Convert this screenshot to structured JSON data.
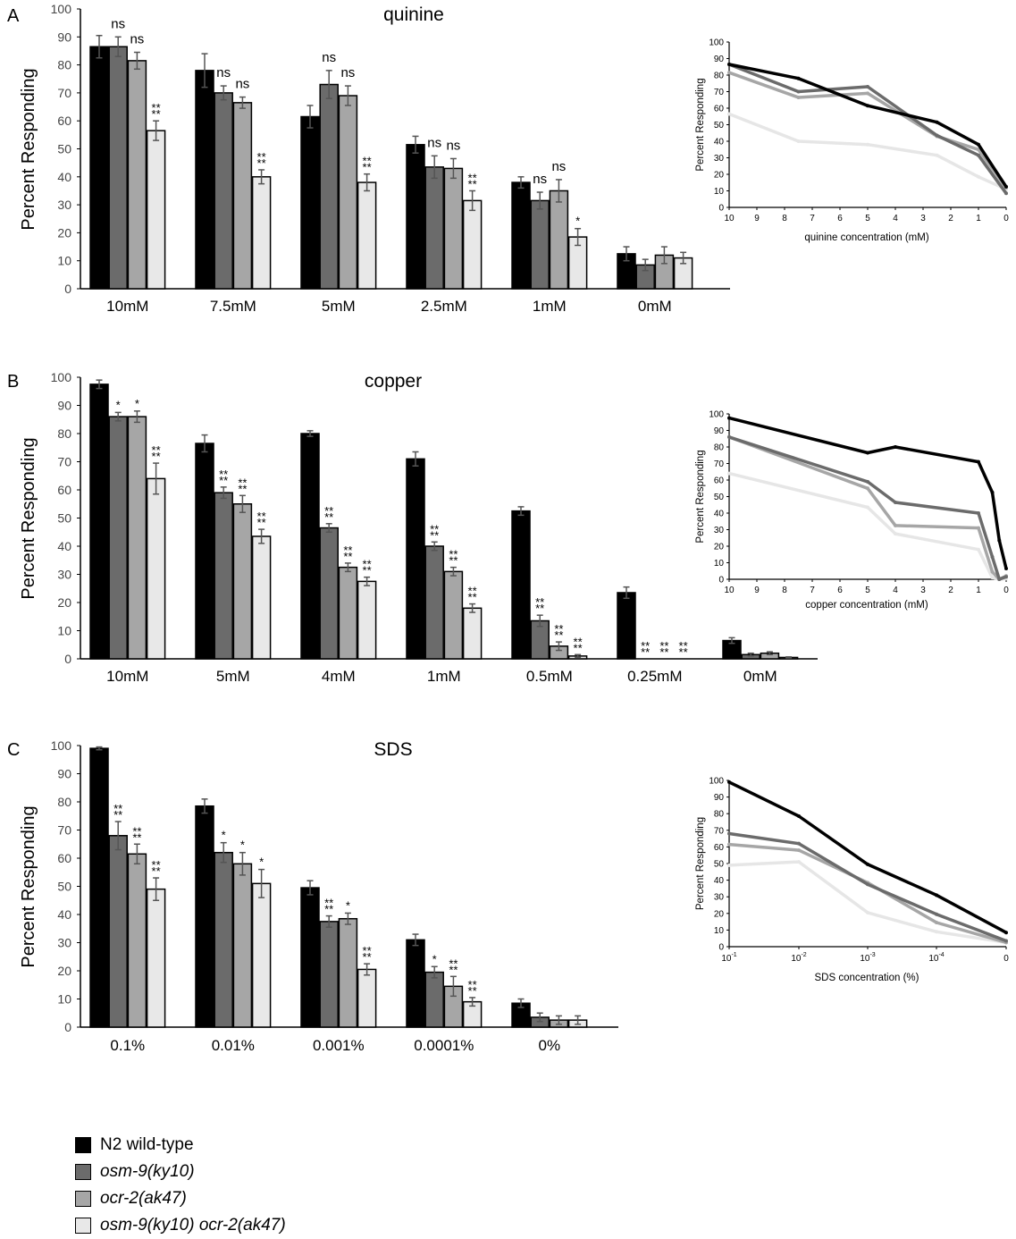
{
  "legend": [
    {
      "label": "N2 wild-type",
      "color": "#000000",
      "italic": false
    },
    {
      "label": "osm-9(ky10)",
      "color": "#6b6b6b",
      "italic": true
    },
    {
      "label": "ocr-2(ak47)",
      "color": "#a6a6a6",
      "italic": true
    },
    {
      "label": "osm-9(ky10) ocr-2(ak47)",
      "color": "#e8e8e8",
      "italic": true
    }
  ],
  "chart_data": [
    {
      "type": "bar",
      "panel": "A",
      "title": "quinine",
      "ylabel": "Percent Responding",
      "ylim": [
        0,
        100
      ],
      "yticks": [
        0,
        10,
        20,
        30,
        40,
        50,
        60,
        70,
        80,
        90,
        100
      ],
      "categories": [
        "10mM",
        "7.5mM",
        "5mM",
        "2.5mM",
        "1mM",
        "0mM"
      ],
      "series": [
        {
          "values": [
            86.5,
            78,
            61.5,
            51.5,
            38,
            12.5
          ],
          "errors": [
            4,
            6,
            4,
            3,
            2,
            2.5
          ]
        },
        {
          "values": [
            86.5,
            70,
            73,
            43.5,
            31.5,
            8.5
          ],
          "errors": [
            3.5,
            2.5,
            5,
            4,
            3,
            2
          ]
        },
        {
          "values": [
            81.5,
            66.5,
            69,
            43,
            35,
            12
          ],
          "errors": [
            3,
            2,
            3.5,
            3.5,
            4,
            3
          ]
        },
        {
          "values": [
            56.5,
            40,
            38,
            31.5,
            18.5,
            11
          ],
          "errors": [
            3.5,
            2.5,
            3,
            3.5,
            3,
            2
          ]
        }
      ],
      "annotations": [
        [
          "",
          "ns",
          "ns",
          "**"
        ],
        [
          "",
          "ns",
          "ns",
          "**"
        ],
        [
          "",
          "ns",
          "ns",
          "**"
        ],
        [
          "",
          "ns",
          "ns",
          "**"
        ],
        [
          "",
          "ns",
          "ns",
          "*"
        ],
        [
          "",
          "",
          "",
          ""
        ]
      ]
    },
    {
      "type": "bar",
      "panel": "B",
      "title": "copper",
      "ylabel": "Percent Responding",
      "ylim": [
        0,
        100
      ],
      "yticks": [
        0,
        10,
        20,
        30,
        40,
        50,
        60,
        70,
        80,
        90,
        100
      ],
      "categories": [
        "10mM",
        "5mM",
        "4mM",
        "1mM",
        "0.5mM",
        "0.25mM",
        "0mM"
      ],
      "series": [
        {
          "values": [
            97.5,
            76.5,
            80,
            71,
            52.5,
            23.5,
            6.5
          ],
          "errors": [
            1.5,
            3,
            1,
            2.5,
            1.5,
            2,
            1
          ]
        },
        {
          "values": [
            86,
            59,
            46.5,
            40,
            13.5,
            0,
            1.5
          ],
          "errors": [
            1.5,
            2,
            1.5,
            1.5,
            2,
            0,
            0.5
          ]
        },
        {
          "values": [
            86,
            55,
            32.5,
            31,
            4.5,
            0,
            2
          ],
          "errors": [
            2,
            3,
            1.5,
            1.5,
            1.5,
            0,
            0.5
          ]
        },
        {
          "values": [
            64,
            43.5,
            27.5,
            18,
            1,
            0,
            0.5
          ],
          "errors": [
            5.5,
            2.5,
            1.5,
            1.5,
            0.5,
            0,
            0.2
          ]
        }
      ],
      "annotations": [
        [
          "",
          "*",
          "*",
          "**"
        ],
        [
          "",
          "**",
          "**",
          "**"
        ],
        [
          "",
          "**",
          "**",
          "**"
        ],
        [
          "",
          "**",
          "**",
          "**"
        ],
        [
          "",
          "**",
          "**",
          "**"
        ],
        [
          "",
          "**",
          "**",
          "**"
        ],
        [
          "",
          "",
          "",
          ""
        ]
      ]
    },
    {
      "type": "bar",
      "panel": "C",
      "title": "SDS",
      "ylabel": "Percent Responding",
      "ylim": [
        0,
        100
      ],
      "yticks": [
        0,
        10,
        20,
        30,
        40,
        50,
        60,
        70,
        80,
        90,
        100
      ],
      "categories": [
        "0.1%",
        "0.01%",
        "0.001%",
        "0.0001%",
        "0%"
      ],
      "series": [
        {
          "values": [
            99,
            78.5,
            49.5,
            31,
            8.5
          ],
          "errors": [
            0.5,
            2.5,
            2.5,
            2,
            1.5
          ]
        },
        {
          "values": [
            68,
            62,
            37.5,
            19.5,
            3.5
          ],
          "errors": [
            5,
            3.5,
            2,
            2,
            1.5
          ]
        },
        {
          "values": [
            61.5,
            58,
            38.5,
            14.5,
            2.5
          ],
          "errors": [
            3.5,
            4,
            2,
            3.5,
            1.5
          ]
        },
        {
          "values": [
            49,
            51,
            20.5,
            9,
            2.5
          ],
          "errors": [
            4,
            5,
            2,
            1.5,
            1.5
          ]
        }
      ],
      "annotations": [
        [
          "",
          "**",
          "**",
          "**"
        ],
        [
          "",
          "*",
          "*",
          "*"
        ],
        [
          "",
          "**",
          "*",
          "**"
        ],
        [
          "",
          "*",
          "**",
          "**"
        ],
        [
          "",
          "",
          "",
          ""
        ]
      ]
    },
    {
      "type": "line",
      "panel": "A-inset",
      "xlabel": "quinine concentration (mM)",
      "ylabel": "Percent Responding",
      "xlim": [
        10,
        0
      ],
      "ylim": [
        0,
        100
      ],
      "yticks": [
        0,
        10,
        20,
        30,
        40,
        50,
        60,
        70,
        80,
        90,
        100
      ],
      "xticks": [
        10,
        9,
        8,
        7,
        6,
        5,
        4,
        3,
        2,
        1,
        0
      ],
      "x": [
        10,
        7.5,
        5,
        2.5,
        1,
        0
      ],
      "series": [
        {
          "values": [
            86.5,
            78,
            61.5,
            51.5,
            38,
            12.5
          ]
        },
        {
          "values": [
            86.5,
            70,
            73,
            43.5,
            31.5,
            8.5
          ]
        },
        {
          "values": [
            81.5,
            66.5,
            69,
            43,
            35,
            12
          ]
        },
        {
          "values": [
            56.5,
            40,
            38,
            31.5,
            18.5,
            11
          ]
        }
      ]
    },
    {
      "type": "line",
      "panel": "B-inset",
      "xlabel": "copper concentration (mM)",
      "ylabel": "Percent Responding",
      "xlim": [
        10,
        0
      ],
      "ylim": [
        0,
        100
      ],
      "yticks": [
        0,
        10,
        20,
        30,
        40,
        50,
        60,
        70,
        80,
        90,
        100
      ],
      "xticks": [
        10,
        9,
        8,
        7,
        6,
        5,
        4,
        3,
        2,
        1,
        0
      ],
      "x": [
        10,
        5,
        4,
        1,
        0.5,
        0.25,
        0
      ],
      "series": [
        {
          "values": [
            97.5,
            76.5,
            80,
            71,
            52.5,
            23.5,
            6.5
          ]
        },
        {
          "values": [
            86,
            59,
            46.5,
            40,
            13.5,
            0,
            1.5
          ]
        },
        {
          "values": [
            86,
            55,
            32.5,
            31,
            4.5,
            0,
            2
          ]
        },
        {
          "values": [
            64,
            43.5,
            27.5,
            18,
            1,
            0,
            0.5
          ]
        }
      ]
    },
    {
      "type": "line",
      "panel": "C-inset",
      "xlabel": "SDS concentration (%)",
      "ylabel": "Percent Responding",
      "ylim": [
        0,
        100
      ],
      "yticks": [
        0,
        10,
        20,
        30,
        40,
        50,
        60,
        70,
        80,
        90,
        100
      ],
      "xticks": [
        {
          "base": "10",
          "exp": "-1"
        },
        {
          "base": "10",
          "exp": "-2"
        },
        {
          "base": "10",
          "exp": "-3"
        },
        {
          "base": "10",
          "exp": "-4"
        },
        {
          "base": "0",
          "exp": ""
        }
      ],
      "x": [
        0.1,
        0.01,
        0.001,
        0.0001,
        0
      ],
      "series": [
        {
          "values": [
            99,
            78.5,
            49.5,
            31,
            8.5
          ]
        },
        {
          "values": [
            68,
            62,
            37.5,
            19.5,
            3.5
          ]
        },
        {
          "values": [
            61.5,
            58,
            38.5,
            14.5,
            2.5
          ]
        },
        {
          "values": [
            49,
            51,
            20.5,
            9,
            2.5
          ]
        }
      ]
    }
  ],
  "panels": [
    "A",
    "B",
    "C"
  ]
}
